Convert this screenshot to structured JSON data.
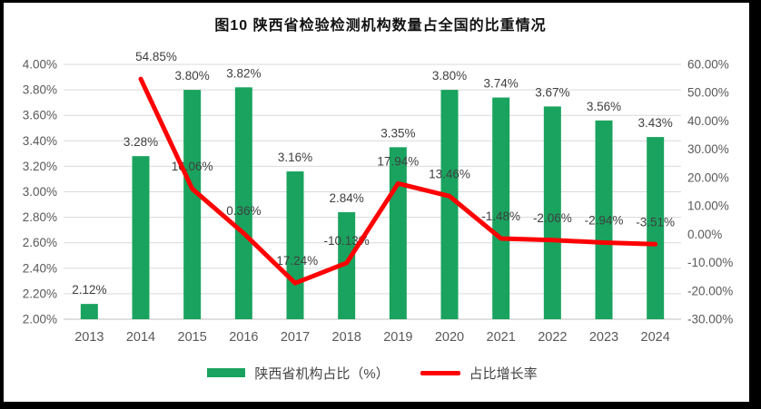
{
  "title": "图10  陕西省检验检测机构数量占全国的比重情况",
  "legend": {
    "bar_label": "陕西省机构占比（%）",
    "line_label": "占比增长率"
  },
  "colors": {
    "bar": "#1aa35f",
    "line": "#ff0000",
    "grid": "#d9d9d9",
    "axis_line": "#bfbfbf",
    "axis_text": "#595959",
    "data_label": "#3f3f3f"
  },
  "chart_data": {
    "type": "bar+line combo",
    "title": "图10  陕西省检验检测机构数量占全国的比重情况",
    "categories": [
      "2013",
      "2014",
      "2015",
      "2016",
      "2017",
      "2018",
      "2019",
      "2020",
      "2021",
      "2022",
      "2023",
      "2024"
    ],
    "series": [
      {
        "name": "陕西省机构占比（%）",
        "type": "bar",
        "axis": "left",
        "values": [
          2.12,
          3.28,
          3.8,
          3.82,
          3.16,
          2.84,
          3.35,
          3.8,
          3.74,
          3.67,
          3.56,
          3.43
        ],
        "labels": [
          "2.12%",
          "3.28%",
          "3.80%",
          "3.82%",
          "3.16%",
          "2.84%",
          "3.35%",
          "3.80%",
          "3.74%",
          "3.67%",
          "3.56%",
          "3.43%"
        ]
      },
      {
        "name": "占比增长率",
        "type": "line",
        "axis": "right",
        "values": [
          null,
          54.85,
          16.06,
          0.36,
          -17.24,
          -10.13,
          17.94,
          13.46,
          -1.48,
          -2.06,
          -2.94,
          -3.51
        ],
        "labels": [
          "",
          "54.85%",
          "16.06%",
          "0.36%",
          "-17.24%",
          "-10.13%",
          "17.94%",
          "13.46%",
          "-1.48%",
          "-2.06%",
          "-2.94%",
          "-3.51%"
        ]
      }
    ],
    "left_axis": {
      "min": 2.0,
      "max": 4.0,
      "step": 0.2,
      "ticks": [
        "4.00%",
        "3.80%",
        "3.60%",
        "3.40%",
        "3.20%",
        "3.00%",
        "2.80%",
        "2.60%",
        "2.40%",
        "2.20%",
        "2.00%"
      ]
    },
    "right_axis": {
      "min": -30,
      "max": 60,
      "step": 10,
      "ticks": [
        "60.00%",
        "50.00%",
        "40.00%",
        "30.00%",
        "20.00%",
        "10.00%",
        "0.00%",
        "-10.00%",
        "-20.00%",
        "-30.00%"
      ]
    },
    "grid": "horizontal",
    "legend_position": "bottom"
  }
}
